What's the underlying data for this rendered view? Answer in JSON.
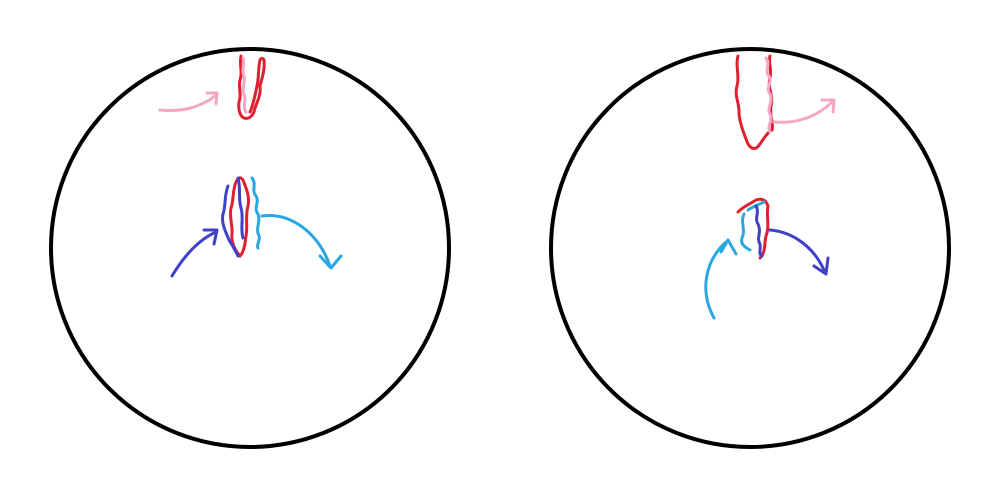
{
  "colors": {
    "outline": "#000000",
    "red": "#e02030",
    "pink": "#f4a6c4",
    "blue": "#2aa7df",
    "indigo": "#4040c8"
  },
  "panels": [
    {
      "name": "left-panel",
      "top_feature": {
        "colors": [
          "red",
          "pink"
        ],
        "arrow_color": "pink"
      },
      "center_feature": {
        "colors": [
          "red",
          "indigo",
          "blue"
        ],
        "arrow_in": "indigo",
        "arrow_out": "blue"
      }
    },
    {
      "name": "right-panel",
      "top_feature": {
        "colors": [
          "red",
          "pink"
        ],
        "arrow_color": "pink"
      },
      "center_feature": {
        "colors": [
          "red",
          "blue",
          "indigo"
        ],
        "arrow_in": "blue",
        "arrow_out": "indigo"
      }
    }
  ]
}
